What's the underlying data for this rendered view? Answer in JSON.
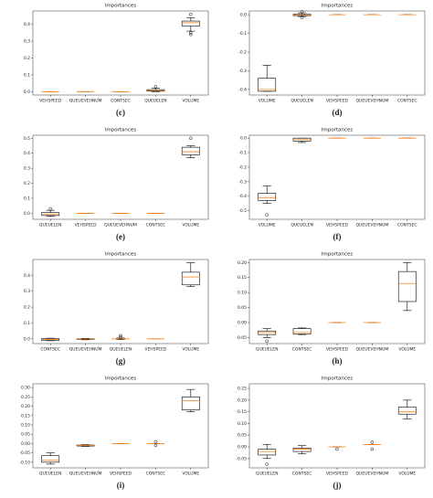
{
  "chart_data": [
    {
      "type": "box",
      "title": "Importances",
      "label": "(c)",
      "color": "#000000",
      "median_color": "#ff7f0e",
      "categories": [
        "VEHSPEED",
        "QUEUEVEHNUM",
        "CONTSEC",
        "QUEUELEN",
        "VOLUME"
      ],
      "boxes": [
        {
          "whislo": 0,
          "q1": 0,
          "med": 0,
          "q3": 0,
          "whishi": 0,
          "fliers": []
        },
        {
          "whislo": 0,
          "q1": 0,
          "med": 0,
          "q3": 0,
          "whishi": 0,
          "fliers": []
        },
        {
          "whislo": 0,
          "q1": 0,
          "med": 0,
          "q3": 0,
          "whishi": 0,
          "fliers": []
        },
        {
          "whislo": 0,
          "q1": 0.003,
          "med": 0.006,
          "q3": 0.012,
          "whishi": 0.02,
          "fliers": [
            0.03
          ]
        },
        {
          "whislo": 0.36,
          "q1": 0.39,
          "med": 0.41,
          "q3": 0.42,
          "whishi": 0.44,
          "fliers": [
            0.35,
            0.34,
            0.46
          ]
        }
      ],
      "ylim": [
        -0.02,
        0.48
      ],
      "yticks": [
        {
          "value": 0,
          "label": "0.0"
        },
        {
          "value": 0.1,
          "label": "0.1"
        },
        {
          "value": 0.2,
          "label": "0.2"
        },
        {
          "value": 0.3,
          "label": "0.3"
        },
        {
          "value": 0.4,
          "label": "0.4"
        }
      ]
    },
    {
      "type": "box",
      "title": "Importances",
      "label": "(d)",
      "color": "#000000",
      "median_color": "#ff7f0e",
      "categories": [
        "VOLUME",
        "QUEUELEN",
        "VEHSPEED",
        "QUEUEVEHNUM",
        "CONTSEC"
      ],
      "boxes": [
        {
          "whislo": -0.41,
          "q1": -0.41,
          "med": -0.4,
          "q3": -0.34,
          "whishi": -0.27,
          "fliers": []
        },
        {
          "whislo": -0.01,
          "q1": -0.005,
          "med": 0,
          "q3": 0.003,
          "whishi": 0.01,
          "fliers": [
            0.015,
            -0.015
          ]
        },
        {
          "whislo": 0,
          "q1": 0,
          "med": 0,
          "q3": 0,
          "whishi": 0,
          "fliers": []
        },
        {
          "whislo": 0,
          "q1": 0,
          "med": 0,
          "q3": 0,
          "whishi": 0,
          "fliers": []
        },
        {
          "whislo": 0,
          "q1": 0,
          "med": 0,
          "q3": 0,
          "whishi": 0,
          "fliers": []
        }
      ],
      "ylim": [
        -0.43,
        0.02
      ],
      "yticks": [
        {
          "value": 0,
          "label": "0.0"
        },
        {
          "value": -0.1,
          "label": "-0.1"
        },
        {
          "value": -0.2,
          "label": "-0.2"
        },
        {
          "value": -0.3,
          "label": "-0.3"
        },
        {
          "value": -0.4,
          "label": "-0.4"
        }
      ]
    },
    {
      "type": "box",
      "title": "Importances",
      "label": "(e)",
      "color": "#000000",
      "median_color": "#ff7f0e",
      "categories": [
        "QUEUELEN",
        "VEHSPEED",
        "QUEUEVEHNUM",
        "CONTSEC",
        "VOLUME"
      ],
      "boxes": [
        {
          "whislo": -0.02,
          "q1": -0.015,
          "med": -0.005,
          "q3": 0.005,
          "whishi": 0.02,
          "fliers": [
            0.03
          ]
        },
        {
          "whislo": 0,
          "q1": 0,
          "med": 0,
          "q3": 0,
          "whishi": 0,
          "fliers": []
        },
        {
          "whislo": 0,
          "q1": 0,
          "med": 0,
          "q3": 0,
          "whishi": 0,
          "fliers": []
        },
        {
          "whislo": 0,
          "q1": 0,
          "med": 0,
          "q3": 0,
          "whishi": 0,
          "fliers": []
        },
        {
          "whislo": 0.37,
          "q1": 0.39,
          "med": 0.41,
          "q3": 0.44,
          "whishi": 0.45,
          "fliers": [
            0.5
          ]
        }
      ],
      "ylim": [
        -0.04,
        0.52
      ],
      "yticks": [
        {
          "value": 0,
          "label": "0.0"
        },
        {
          "value": 0.1,
          "label": "0.1"
        },
        {
          "value": 0.2,
          "label": "0.2"
        },
        {
          "value": 0.3,
          "label": "0.3"
        },
        {
          "value": 0.4,
          "label": "0.4"
        },
        {
          "value": 0.5,
          "label": "0.5"
        }
      ]
    },
    {
      "type": "box",
      "title": "Importances",
      "label": "(f)",
      "color": "#000000",
      "median_color": "#ff7f0e",
      "categories": [
        "VOLUME",
        "QUEUELEN",
        "VEHSPEED",
        "QUEUEVEHNUM",
        "CONTSEC"
      ],
      "boxes": [
        {
          "whislo": -0.45,
          "q1": -0.43,
          "med": -0.41,
          "q3": -0.38,
          "whishi": -0.33,
          "fliers": [
            -0.53
          ]
        },
        {
          "whislo": -0.03,
          "q1": -0.02,
          "med": -0.01,
          "q3": 0,
          "whishi": 0,
          "fliers": []
        },
        {
          "whislo": 0,
          "q1": 0,
          "med": 0,
          "q3": 0,
          "whishi": 0,
          "fliers": []
        },
        {
          "whislo": 0,
          "q1": 0,
          "med": 0,
          "q3": 0,
          "whishi": 0,
          "fliers": []
        },
        {
          "whislo": 0,
          "q1": 0,
          "med": 0,
          "q3": 0,
          "whishi": 0,
          "fliers": []
        }
      ],
      "ylim": [
        -0.56,
        0.02
      ],
      "yticks": [
        {
          "value": 0,
          "label": "0.0"
        },
        {
          "value": -0.1,
          "label": "-0.1"
        },
        {
          "value": -0.2,
          "label": "-0.2"
        },
        {
          "value": -0.3,
          "label": "-0.3"
        },
        {
          "value": -0.4,
          "label": "-0.4"
        },
        {
          "value": -0.5,
          "label": "-0.5"
        }
      ]
    },
    {
      "type": "box",
      "title": "Importances",
      "label": "(g)",
      "color": "#000000",
      "median_color": "#ff7f0e",
      "categories": [
        "CONTSEC",
        "QUEUEVEHNUM",
        "QUEUELEN",
        "VEHSPEED",
        "VOLUME"
      ],
      "boxes": [
        {
          "whislo": -0.012,
          "q1": -0.01,
          "med": -0.005,
          "q3": 0.002,
          "whishi": 0.004,
          "fliers": []
        },
        {
          "whislo": -0.006,
          "q1": -0.004,
          "med": -0.002,
          "q3": 0,
          "whishi": 0.002,
          "fliers": []
        },
        {
          "whislo": -0.005,
          "q1": 0,
          "med": 0,
          "q3": 0,
          "whishi": 0.005,
          "fliers": [
            0.01,
            0.02
          ]
        },
        {
          "whislo": 0,
          "q1": 0,
          "med": 0,
          "q3": 0,
          "whishi": 0,
          "fliers": []
        },
        {
          "whislo": 0.33,
          "q1": 0.34,
          "med": 0.39,
          "q3": 0.42,
          "whishi": 0.48,
          "fliers": []
        }
      ],
      "ylim": [
        -0.03,
        0.5
      ],
      "yticks": [
        {
          "value": 0,
          "label": "0.0"
        },
        {
          "value": 0.1,
          "label": "0.1"
        },
        {
          "value": 0.2,
          "label": "0.2"
        },
        {
          "value": 0.3,
          "label": "0.3"
        },
        {
          "value": 0.4,
          "label": "0.4"
        }
      ]
    },
    {
      "type": "box",
      "title": "Importances",
      "label": "(h)",
      "color": "#000000",
      "median_color": "#ff7f0e",
      "categories": [
        "QUEUELEN",
        "CONTSEC",
        "VEHSPEED",
        "QUEUEVEHNUM",
        "VOLUME"
      ],
      "boxes": [
        {
          "whislo": -0.05,
          "q1": -0.04,
          "med": -0.033,
          "q3": -0.028,
          "whishi": -0.02,
          "fliers": [
            -0.062
          ]
        },
        {
          "whislo": -0.04,
          "q1": -0.038,
          "med": -0.033,
          "q3": -0.02,
          "whishi": -0.018,
          "fliers": []
        },
        {
          "whislo": 0,
          "q1": 0,
          "med": 0,
          "q3": 0,
          "whishi": 0,
          "fliers": []
        },
        {
          "whislo": 0,
          "q1": 0,
          "med": 0,
          "q3": 0,
          "whishi": 0,
          "fliers": []
        },
        {
          "whislo": 0.04,
          "q1": 0.07,
          "med": 0.13,
          "q3": 0.17,
          "whishi": 0.2,
          "fliers": []
        }
      ],
      "ylim": [
        -0.07,
        0.21
      ],
      "yticks": [
        {
          "value": -0.05,
          "label": "-0.05"
        },
        {
          "value": 0,
          "label": "0.00"
        },
        {
          "value": 0.05,
          "label": "0.05"
        },
        {
          "value": 0.1,
          "label": "0.10"
        },
        {
          "value": 0.15,
          "label": "0.15"
        },
        {
          "value": 0.2,
          "label": "0.20"
        }
      ]
    },
    {
      "type": "box",
      "title": "Importances",
      "label": "(i)",
      "color": "#000000",
      "median_color": "#ff7f0e",
      "categories": [
        "QUEUELEN",
        "QUEUEVEHNUM",
        "VEHSPEED",
        "CONTSEC",
        "VOLUME"
      ],
      "boxes": [
        {
          "whislo": -0.11,
          "q1": -0.1,
          "med": -0.09,
          "q3": -0.065,
          "whishi": -0.05,
          "fliers": []
        },
        {
          "whislo": -0.015,
          "q1": -0.013,
          "med": -0.01,
          "q3": -0.008,
          "whishi": -0.006,
          "fliers": []
        },
        {
          "whislo": 0,
          "q1": 0,
          "med": 0,
          "q3": 0,
          "whishi": 0,
          "fliers": []
        },
        {
          "whislo": 0,
          "q1": 0,
          "med": 0,
          "q3": 0,
          "whishi": 0,
          "fliers": [
            0.01,
            -0.01
          ]
        },
        {
          "whislo": 0.17,
          "q1": 0.18,
          "med": 0.23,
          "q3": 0.25,
          "whishi": 0.29,
          "fliers": []
        }
      ],
      "ylim": [
        -0.13,
        0.32
      ],
      "yticks": [
        {
          "value": -0.1,
          "label": "-0.10"
        },
        {
          "value": -0.05,
          "label": "-0.05"
        },
        {
          "value": 0,
          "label": "0.00"
        },
        {
          "value": 0.05,
          "label": "0.05"
        },
        {
          "value": 0.1,
          "label": "0.10"
        },
        {
          "value": 0.15,
          "label": "0.15"
        },
        {
          "value": 0.2,
          "label": "0.20"
        },
        {
          "value": 0.25,
          "label": "0.25"
        },
        {
          "value": 0.3,
          "label": "0.30"
        }
      ]
    },
    {
      "type": "box",
      "title": "Importances",
      "label": "(j)",
      "color": "#000000",
      "median_color": "#ff7f0e",
      "categories": [
        "QUEUELEN",
        "CONTSEC",
        "VEHSPEED",
        "QUEUEVEHNUM",
        "VOLUME"
      ],
      "boxes": [
        {
          "whislo": -0.05,
          "q1": -0.035,
          "med": -0.02,
          "q3": -0.01,
          "whishi": 0.01,
          "fliers": [
            -0.075
          ]
        },
        {
          "whislo": -0.03,
          "q1": -0.02,
          "med": -0.01,
          "q3": -0.005,
          "whishi": 0.005,
          "fliers": []
        },
        {
          "whislo": 0,
          "q1": 0,
          "med": 0,
          "q3": 0,
          "whishi": 0,
          "fliers": [
            -0.01
          ]
        },
        {
          "whislo": 0.01,
          "q1": 0.01,
          "med": 0.01,
          "q3": 0.01,
          "whishi": 0.01,
          "fliers": [
            0.02,
            -0.01
          ]
        },
        {
          "whislo": 0.12,
          "q1": 0.14,
          "med": 0.15,
          "q3": 0.17,
          "whishi": 0.2,
          "fliers": []
        }
      ],
      "ylim": [
        -0.09,
        0.27
      ],
      "yticks": [
        {
          "value": -0.05,
          "label": "-0.05"
        },
        {
          "value": 0,
          "label": "0.00"
        },
        {
          "value": 0.05,
          "label": "0.05"
        },
        {
          "value": 0.1,
          "label": "0.10"
        },
        {
          "value": 0.15,
          "label": "0.15"
        },
        {
          "value": 0.2,
          "label": "0.20"
        },
        {
          "value": 0.25,
          "label": "0.25"
        }
      ]
    }
  ]
}
